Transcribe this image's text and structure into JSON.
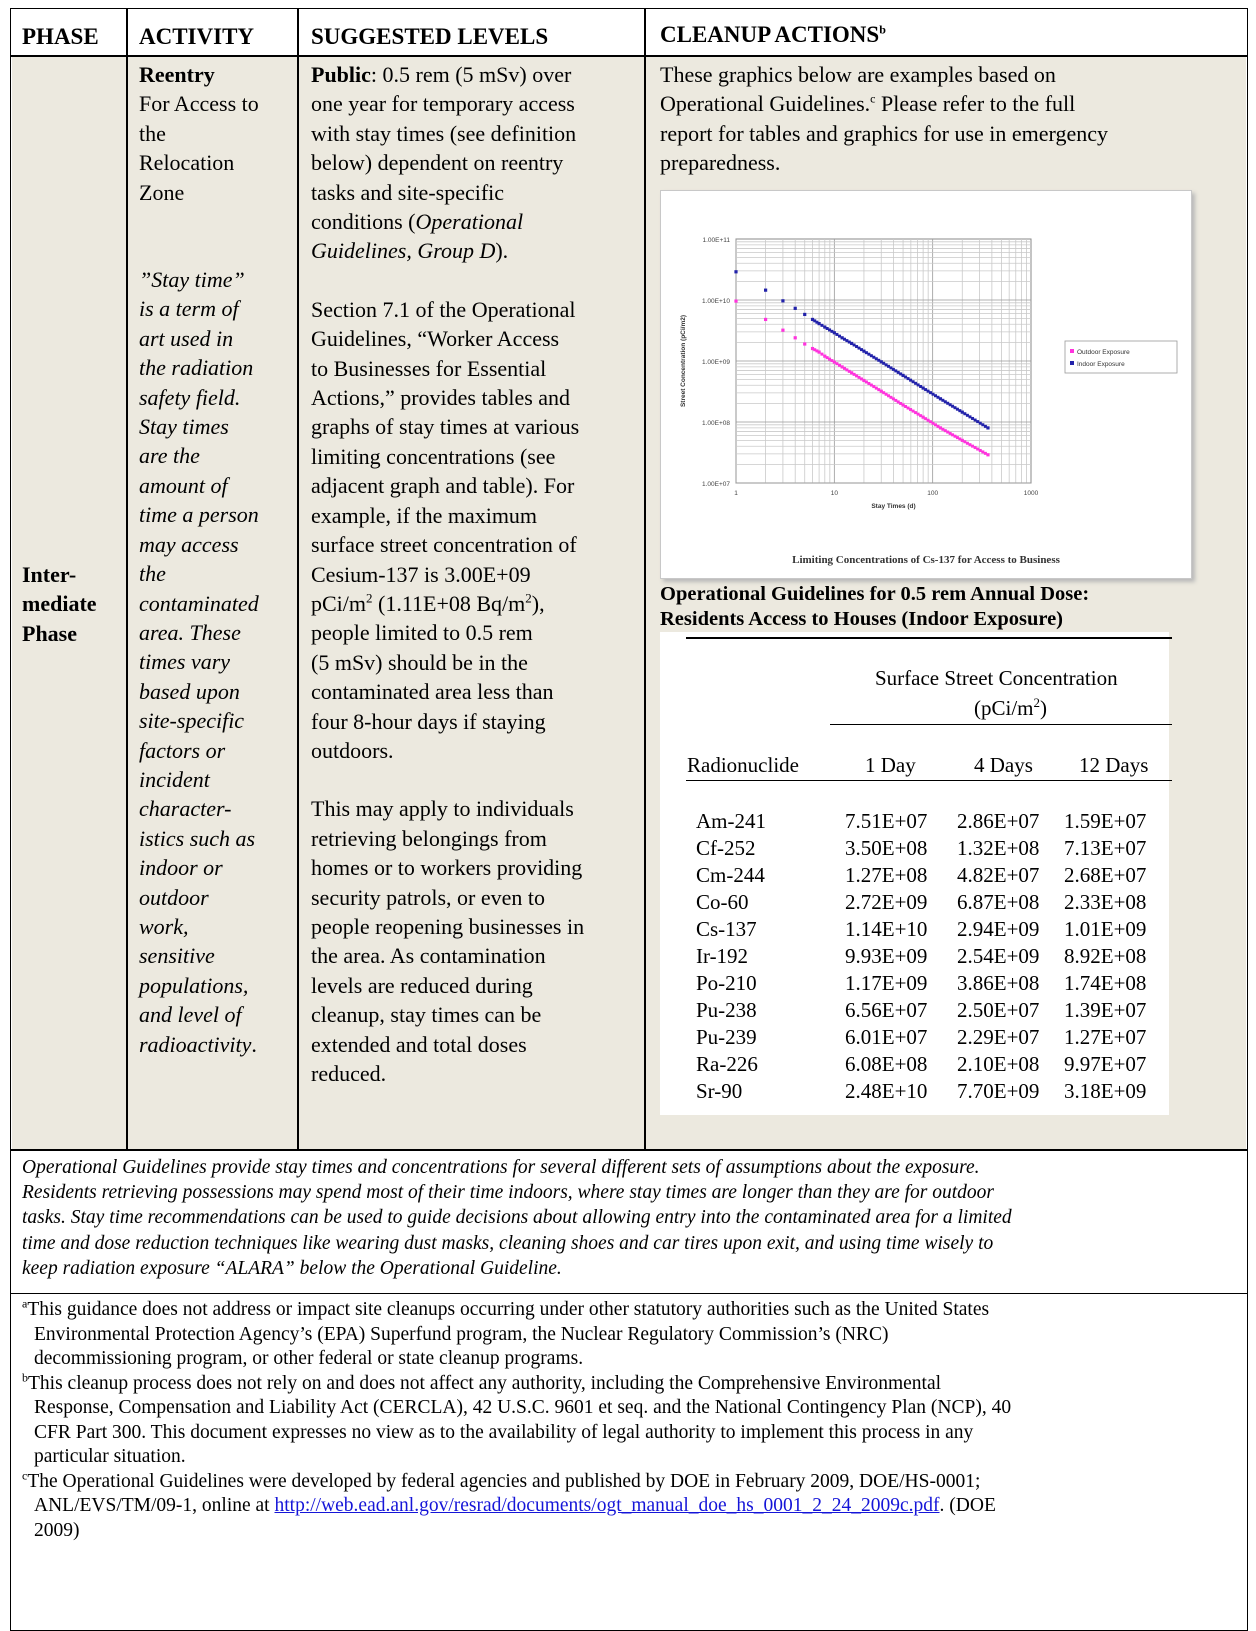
{
  "header": {
    "phase": "PHASE",
    "activity": "ACTIVITY",
    "suggested_levels": "SUGGESTED LEVELS",
    "cleanup_actions": "CLEANUP ACTIONS",
    "cleanup_sup": "b"
  },
  "phase_cell": [
    "Inter-",
    "mediate",
    "Phase"
  ],
  "activity_cell": {
    "title": "Reentry",
    "lines": [
      "For Access to",
      "the",
      "Relocation",
      "Zone"
    ],
    "italic_lines": [
      "”Stay time”",
      "is a term of",
      "art used in",
      "the radiation",
      "safety field.",
      "Stay times",
      "are the",
      "amount of",
      "time a person",
      "may access",
      "the",
      "contaminated",
      "area. These",
      "times vary",
      "based upon",
      "site-specific",
      "factors or",
      "incident",
      "character-",
      "istics such as",
      "indoor or",
      "outdoor",
      "work,",
      "sensitive",
      "populations,",
      "and level of"
    ],
    "last_italic": "radioactivity",
    "last_plain": "."
  },
  "levels_cell": {
    "p1_bold": "Public",
    "p1_lines": [
      ": 0.5 rem (5 mSv) over",
      "one year for temporary access",
      "with stay times (see definition",
      "below) dependent on reentry",
      "tasks and site-specific",
      "conditions ("
    ],
    "p1_italic": [
      "Operational",
      "Guidelines, Group D"
    ],
    "p1_end": ").",
    "p2_lines": [
      "Section 7.1 of the Operational",
      "Guidelines, “Worker Access",
      "to Businesses for Essential",
      "Actions,” provides tables and",
      "graphs of stay times at various",
      "limiting concentrations (see",
      "adjacent graph and table). For",
      "example, if the maximum",
      "surface street concentration of",
      "Cesium-137 is 3.00E+09"
    ],
    "p2_unit_a": "pCi/m",
    "p2_unit_b": " (1.11E+08 Bq/m",
    "p2_unit_c": "),",
    "p2_sq": "2",
    "p2_lines_b": [
      "people limited to 0.5 rem",
      "(5 mSv) should be in the",
      "contaminated area less than",
      "four 8-hour days if staying",
      "outdoors."
    ],
    "p3_lines": [
      "This may apply to individuals",
      "retrieving belongings from",
      "homes or to workers providing",
      "security patrols, or even to",
      "people reopening businesses in",
      "the area. As contamination",
      "levels are reduced during",
      "cleanup, stay times can be",
      "extended and total doses",
      "reduced."
    ]
  },
  "cleanup_cell": {
    "intro_a": "These graphics below are examples based on",
    "intro_b": "Operational Guidelines.",
    "intro_sup": "c",
    "intro_c": " Please refer to the full",
    "intro_d": "report for tables and graphics for use in emergency",
    "intro_e": "preparedness.",
    "chart_caption": "Limiting Concentrations of Cs-137 for Access to Business",
    "table_title_1": "Operational Guidelines for 0.5 rem Annual Dose:",
    "table_title_2": "Residents Access to Houses (Indoor Exposure)"
  },
  "chart_data": {
    "type": "scatter",
    "title": "",
    "xlabel": "Stay Times (d)",
    "ylabel": "Street Concentration (pCi/m2)",
    "x_scale": "log",
    "y_scale": "log",
    "xlim": [
      1,
      1000
    ],
    "ylim": [
      10000000.0,
      100000000000.0
    ],
    "x_ticks": [
      "1",
      "10",
      "100",
      "1000"
    ],
    "y_ticks": [
      "1.00E+11",
      "1.00E+10",
      "1.00E+09",
      "1.00E+08",
      "1.00E+07"
    ],
    "grid": true,
    "legend": "right",
    "series": [
      {
        "name": "Outdoor Exposure",
        "color": "#ff33dd",
        "points": [
          [
            1,
            9600000000.0
          ],
          [
            2,
            4800000000.0
          ],
          [
            3,
            3200000000.0
          ],
          [
            4,
            2400000000.0
          ],
          [
            5,
            1900000000.0
          ],
          [
            6,
            1600000000.0
          ],
          [
            7,
            1400000000.0
          ],
          [
            8,
            1200000000.0
          ],
          [
            10,
            960000000.0
          ],
          [
            12,
            800000000.0
          ],
          [
            15,
            640000000.0
          ],
          [
            20,
            480000000.0
          ],
          [
            30,
            320000000.0
          ],
          [
            50,
            190000000.0
          ],
          [
            80,
            120000000.0
          ],
          [
            120,
            80000000.0
          ],
          [
            200,
            50000000.0
          ],
          [
            365,
            29000000.0
          ]
        ]
      },
      {
        "name": "Indoor Exposure",
        "color": "#2222aa",
        "points": [
          [
            1,
            29000000000.0
          ],
          [
            2,
            14500000000.0
          ],
          [
            3,
            9700000000.0
          ],
          [
            4,
            7300000000.0
          ],
          [
            5,
            5800000000.0
          ],
          [
            6,
            4800000000.0
          ],
          [
            7,
            4100000000.0
          ],
          [
            8,
            3600000000.0
          ],
          [
            10,
            2900000000.0
          ],
          [
            12,
            2400000000.0
          ],
          [
            15,
            1940000000.0
          ],
          [
            20,
            1450000000.0
          ],
          [
            30,
            970000000.0
          ],
          [
            50,
            580000000.0
          ],
          [
            80,
            360000000.0
          ],
          [
            120,
            240000000.0
          ],
          [
            200,
            145000000.0
          ],
          [
            365,
            80000000.0
          ]
        ]
      }
    ]
  },
  "table": {
    "span_header": "Surface Street Concentration",
    "span_header_unit_a": "(pCi/m",
    "span_header_unit_sup": "2",
    "span_header_unit_b": ")",
    "columns": [
      "Radionuclide",
      "1 Day",
      "4 Days",
      "12 Days"
    ],
    "rows": [
      [
        "Am-241",
        "7.51E+07",
        "2.86E+07",
        "1.59E+07"
      ],
      [
        "Cf-252",
        "3.50E+08",
        "1.32E+08",
        "7.13E+07"
      ],
      [
        "Cm-244",
        "1.27E+08",
        "4.82E+07",
        "2.68E+07"
      ],
      [
        "Co-60",
        "2.72E+09",
        "6.87E+08",
        "2.33E+08"
      ],
      [
        "Cs-137",
        "1.14E+10",
        "2.94E+09",
        "1.01E+09"
      ],
      [
        "Ir-192",
        "9.93E+09",
        "2.54E+09",
        "8.92E+08"
      ],
      [
        "Po-210",
        "1.17E+09",
        "3.86E+08",
        "1.74E+08"
      ],
      [
        "Pu-238",
        "6.56E+07",
        "2.50E+07",
        "1.39E+07"
      ],
      [
        "Pu-239",
        "6.01E+07",
        "2.29E+07",
        "1.27E+07"
      ],
      [
        "Ra-226",
        "6.08E+08",
        "2.10E+08",
        "9.97E+07"
      ],
      [
        "Sr-90",
        "2.48E+10",
        "7.70E+09",
        "3.18E+09"
      ]
    ]
  },
  "note": [
    "Operational Guidelines provide stay times and concentrations for several different sets of assumptions about the exposure.",
    "Residents retrieving possessions may spend most of their  time indoors, where stay times are longer than they are for outdoor",
    "tasks. Stay time  recommendations can be used to guide decisions about allowing entry into the contaminated area for a limited",
    "time and dose reduction techniques like wearing dust masks, cleaning shoes and car tires upon exit, and using time wisely to",
    "keep radiation exposure “ALARA” below the  Operational Guideline."
  ],
  "footnotes": {
    "a_mark": "a",
    "a_lines": [
      "This guidance does not address or impact site cleanups occurring under other statutory authorities such as the United States",
      "Environmental Protection Agency’s (EPA) Superfund program, the Nuclear Regulatory Commission’s (NRC)",
      "decommissioning program, or other federal or state cleanup programs."
    ],
    "b_mark": "b",
    "b_lines": [
      "This cleanup process does not rely on and does not affect any authority, including the Comprehensive Environmental",
      "Response, Compensation and Liability Act (CERCLA), 42 U.S.C. 9601 et seq. and the National Contingency Plan (NCP), 40",
      "CFR Part 300. This document expresses no view as to the availability of legal authority to implement this process in any",
      "particular situation."
    ],
    "c_mark": "c",
    "c_line1": "The Operational Guidelines were developed by federal agencies and published by DOE in February 2009, DOE/HS-0001;",
    "c_line2_a": "ANL/EVS/TM/09-1, online at ",
    "c_link": "http://web.ead.anl.gov/resrad/documents/ogt_manual_doe_hs_0001_2_24_2009c.pdf",
    "c_line2_b": ". (DOE",
    "c_line3": "2009)"
  }
}
